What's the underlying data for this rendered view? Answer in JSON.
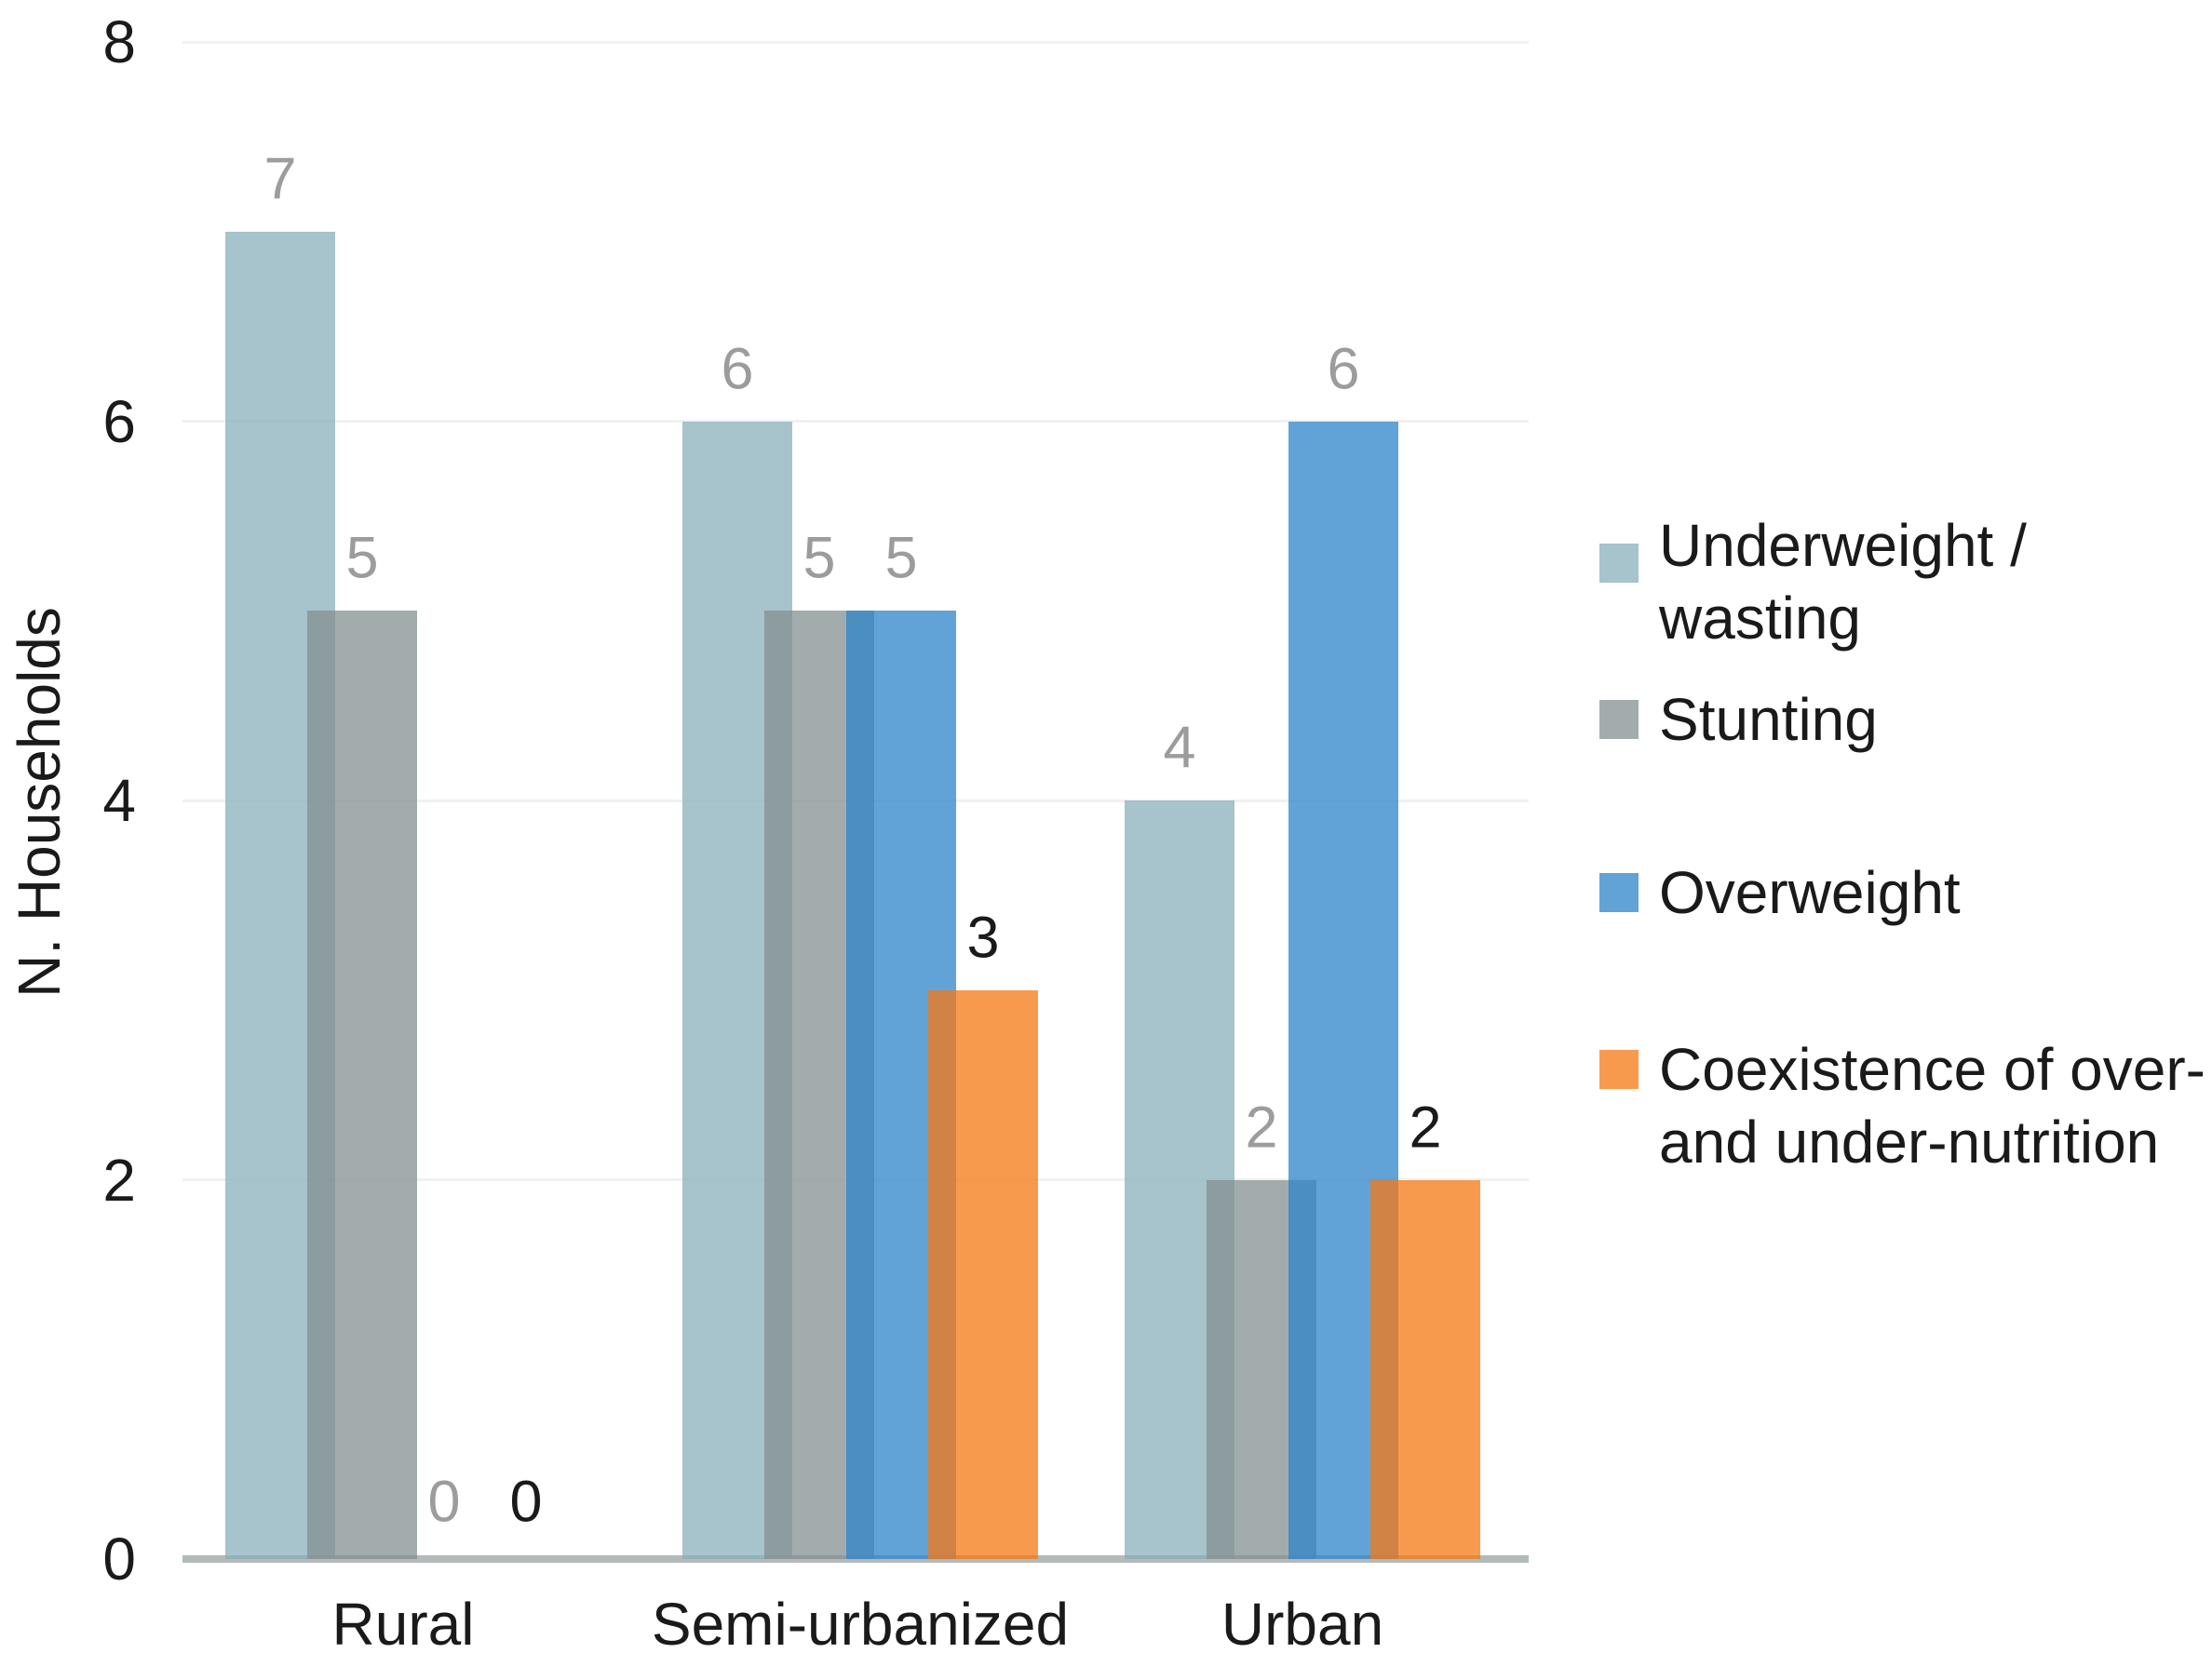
{
  "figure": {
    "background": "#ffffff"
  },
  "chart_data": {
    "type": "bar",
    "title": "",
    "ylabel": "N. Households",
    "xlabel": "",
    "ylim": [
      0,
      8
    ],
    "yticks": [
      0,
      2,
      4,
      6,
      8
    ],
    "grid": true,
    "gridline_color": "#f1f1f1",
    "axis_line_color": "#b4b9b9",
    "tick_label_color": "#1a1a1a",
    "category_label_color": "#1a1a1a",
    "legend_position": "right",
    "bar_style": "grouped with overlap, semi-transparent fills",
    "categories": [
      "Rural",
      "Semi-urbanized",
      "Urban"
    ],
    "series": [
      {
        "name": "Underweight / wasting",
        "legend_lines": [
          "Underweight /",
          "wasting"
        ],
        "fill": "rgba(138,175,186,0.75)",
        "apparent_hex": "#a7c3cb",
        "label_color": "#9c9c9c",
        "values": [
          7,
          6,
          4
        ]
      },
      {
        "name": "Stunting",
        "legend_lines": [
          "Stunting"
        ],
        "fill": "rgba(132,144,144,0.75)",
        "apparent_hex": "#a3acac",
        "label_color": "#9c9c9c",
        "values": [
          5,
          5,
          2
        ]
      },
      {
        "name": "Overweight",
        "legend_lines": [
          "Overweight"
        ],
        "fill": "rgba(46,132,202,0.75)",
        "apparent_hex": "#62a3d7",
        "label_color": "#9c9c9c",
        "values": [
          0,
          5,
          6
        ]
      },
      {
        "name": "Coexistence of over- and under-nutrition",
        "legend_lines": [
          "Coexistence of over-",
          "and under-nutrition"
        ],
        "fill": "rgba(246,120,19,0.75)",
        "apparent_hex": "#f89a4e",
        "label_color": "#1a1a1a",
        "values": [
          0,
          3,
          2
        ]
      }
    ],
    "data_labels_visible": true,
    "data_labels": [
      [
        7,
        5,
        0,
        0
      ],
      [
        6,
        5,
        5,
        3
      ],
      [
        4,
        2,
        6,
        2
      ]
    ]
  }
}
